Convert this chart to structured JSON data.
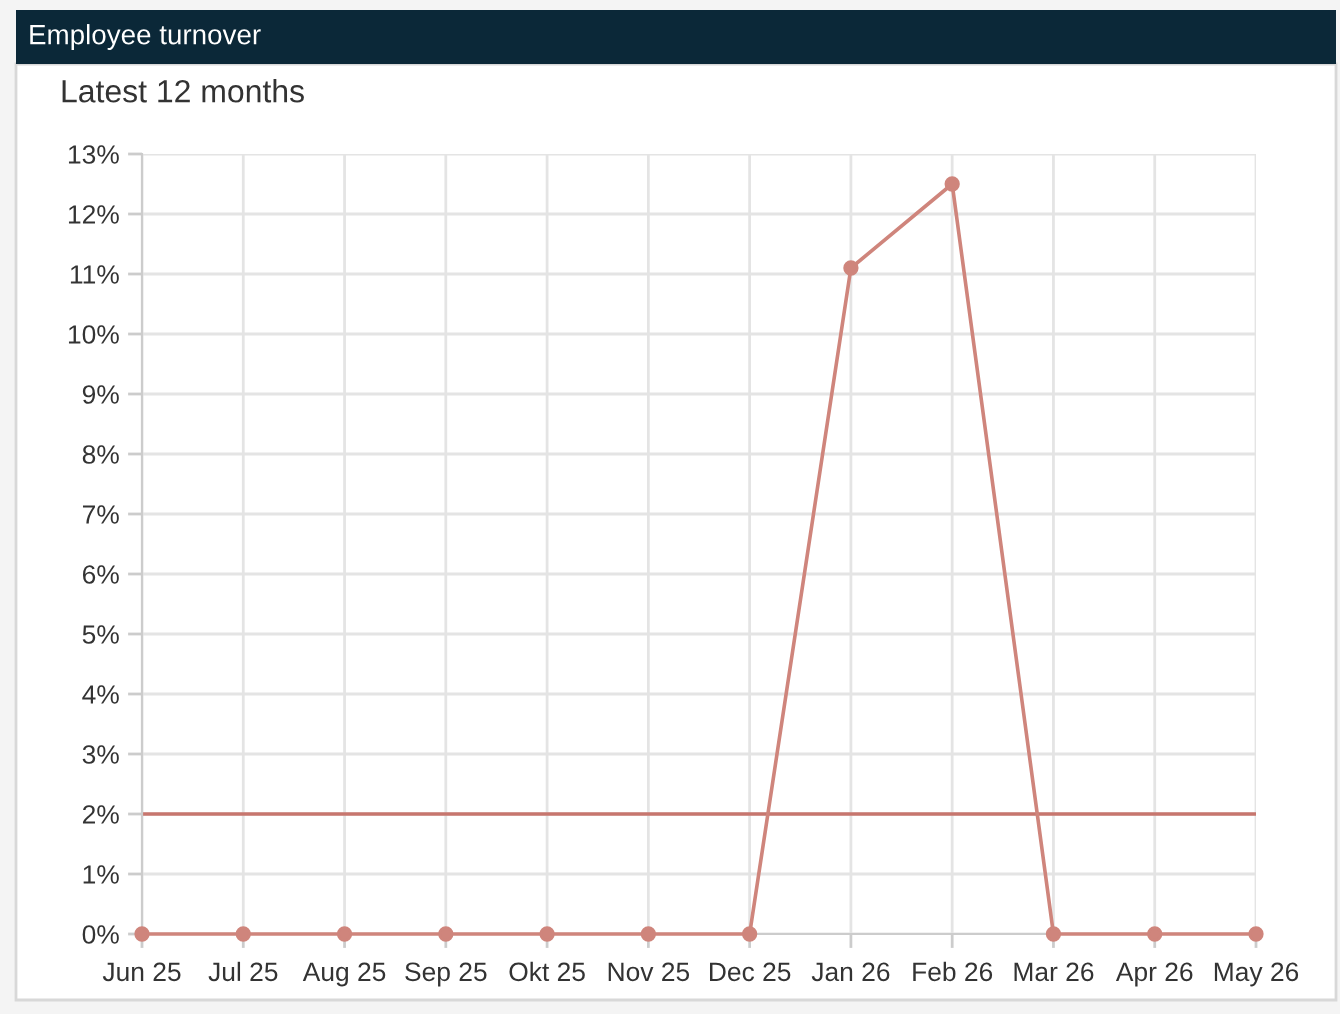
{
  "chart_data": {
    "type": "line",
    "title": "Employee turnover",
    "subtitle": "Latest 12 months",
    "categories": [
      "Jun 25",
      "Jul 25",
      "Aug 25",
      "Sep 25",
      "Okt 25",
      "Nov 25",
      "Dec 25",
      "Jan 26",
      "Feb 26",
      "Mar 26",
      "Apr 26",
      "May 26"
    ],
    "series": [
      {
        "color": "#cf857c",
        "values": [
          0,
          0,
          0,
          0,
          0,
          0,
          0,
          11.1,
          12.5,
          0,
          0,
          0
        ]
      }
    ],
    "ylim": [
      0,
      13
    ],
    "yticks": [
      {
        "value": 0,
        "label": "0%"
      },
      {
        "value": 1,
        "label": "1%"
      },
      {
        "value": 2,
        "label": "2%"
      },
      {
        "value": 3,
        "label": "3%"
      },
      {
        "value": 4,
        "label": "4%"
      },
      {
        "value": 5,
        "label": "5%"
      },
      {
        "value": 6,
        "label": "6%"
      },
      {
        "value": 7,
        "label": "7%"
      },
      {
        "value": 8,
        "label": "8%"
      },
      {
        "value": 9,
        "label": "9%"
      },
      {
        "value": 10,
        "label": "10%"
      },
      {
        "value": 11,
        "label": "11%"
      },
      {
        "value": 12,
        "label": "12%"
      },
      {
        "value": 13,
        "label": "13%"
      }
    ],
    "ref_lines": [
      {
        "axis": "y",
        "value": 2,
        "color": "#c7766e"
      }
    ],
    "grid": true,
    "marker": "circle",
    "line_style": "solid"
  }
}
